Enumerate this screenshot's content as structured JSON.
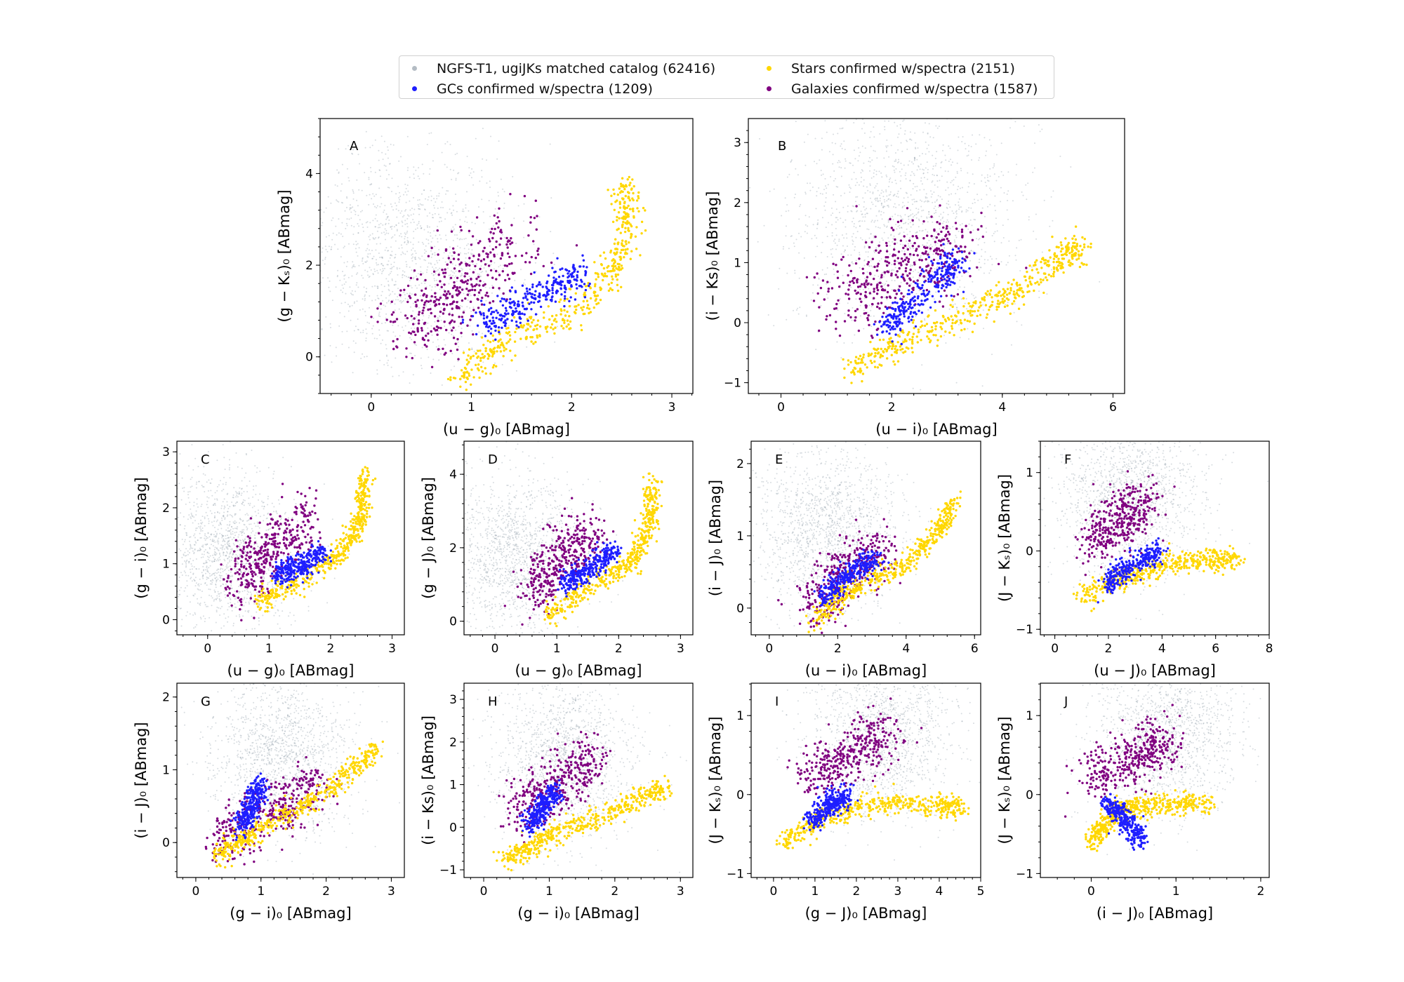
{
  "legend": {
    "placement": "top-center",
    "items": [
      {
        "label": "NGFS-T1, ugiJKs matched catalog (62416)",
        "color": "#8c9aa6"
      },
      {
        "label": "Stars confirmed w/spectra (2151)",
        "color": "#ffd700"
      },
      {
        "label": "GCs confirmed w/spectra (1209)",
        "color": "#1e1eff"
      },
      {
        "label": "Galaxies confirmed w/spectra (1587)",
        "color": "#800080"
      }
    ]
  },
  "chart_data": [
    {
      "type": "scatter",
      "panel": "A",
      "xlabel": "(u − g)₀ [ABmag]",
      "ylabel": "(g − Kₛ)₀ [ABmag]",
      "xlim": [
        -0.51,
        3.21
      ],
      "ylim": [
        -0.8,
        5.2
      ],
      "xticks": [
        0,
        1,
        2,
        3
      ],
      "yticks": [
        0,
        2,
        4
      ],
      "series": {
        "field": {
          "center": [
            0.3,
            2.2
          ]
        },
        "stars": [
          [
            0.85,
            -0.5
          ],
          [
            1.3,
            0.3
          ],
          [
            2.0,
            1.0
          ],
          [
            2.4,
            1.8
          ],
          [
            2.55,
            2.8
          ],
          [
            2.55,
            3.8
          ]
        ],
        "gcs": [
          [
            1.1,
            0.7
          ],
          [
            1.4,
            1.0
          ],
          [
            1.8,
            1.5
          ],
          [
            2.1,
            1.8
          ]
        ],
        "galaxies": [
          [
            0.4,
            0.3
          ],
          [
            0.7,
            1.2
          ],
          [
            1.0,
            1.8
          ],
          [
            1.5,
            2.8
          ]
        ]
      }
    },
    {
      "type": "scatter",
      "panel": "B",
      "xlabel": "(u − i)₀ [ABmag]",
      "ylabel": "(i − Ks)₀ [ABmag]",
      "xlim": [
        -0.59,
        6.21
      ],
      "ylim": [
        -1.18,
        3.4
      ],
      "xticks": [
        0,
        2,
        4,
        6
      ],
      "yticks": [
        -1,
        0,
        1,
        2,
        3
      ],
      "series": {
        "field": {
          "center": [
            2.2,
            1.8
          ]
        },
        "stars": [
          [
            1.2,
            -0.8
          ],
          [
            2.5,
            -0.2
          ],
          [
            4,
            0.4
          ],
          [
            5,
            1.0
          ],
          [
            5.4,
            1.3
          ]
        ],
        "gcs": [
          [
            1.9,
            -0.1
          ],
          [
            2.3,
            0.3
          ],
          [
            2.9,
            0.8
          ],
          [
            3.2,
            1.0
          ]
        ],
        "galaxies": [
          [
            1.2,
            0.2
          ],
          [
            1.7,
            0.8
          ],
          [
            2.5,
            1.0
          ],
          [
            3.2,
            1.3
          ]
        ]
      }
    },
    {
      "type": "scatter",
      "panel": "C",
      "xlabel": "(u − g)₀ [ABmag]",
      "ylabel": "(g − i)₀ [ABmag]",
      "xlim": [
        -0.5,
        3.2
      ],
      "ylim": [
        -0.27,
        3.19
      ],
      "xticks": [
        0,
        1,
        2,
        3
      ],
      "yticks": [
        0,
        1,
        2,
        3
      ],
      "series": {
        "field": {
          "center": [
            0.3,
            1.2
          ]
        },
        "stars": [
          [
            0.85,
            0.3
          ],
          [
            1.5,
            0.7
          ],
          [
            2.2,
            1.2
          ],
          [
            2.5,
            1.8
          ],
          [
            2.55,
            2.6
          ]
        ],
        "gcs": [
          [
            1.1,
            0.8
          ],
          [
            1.5,
            0.95
          ],
          [
            1.9,
            1.2
          ]
        ],
        "galaxies": [
          [
            0.6,
            0.6
          ],
          [
            0.8,
            1.1
          ],
          [
            1.2,
            1.4
          ],
          [
            1.6,
            1.8
          ]
        ]
      }
    },
    {
      "type": "scatter",
      "panel": "D",
      "xlabel": "(u − g)₀ [ABmag]",
      "ylabel": "(g − J)₀ [ABmag]",
      "xlim": [
        -0.5,
        3.2
      ],
      "ylim": [
        -0.37,
        4.9
      ],
      "xticks": [
        0,
        1,
        2,
        3
      ],
      "yticks": [
        0,
        2,
        4
      ],
      "series": {
        "field": {
          "center": [
            0.3,
            1.8
          ]
        },
        "stars": [
          [
            0.85,
            0.1
          ],
          [
            1.5,
            0.9
          ],
          [
            2.2,
            1.6
          ],
          [
            2.5,
            2.6
          ],
          [
            2.55,
            3.8
          ]
        ],
        "gcs": [
          [
            1.1,
            1.0
          ],
          [
            1.5,
            1.4
          ],
          [
            1.9,
            1.9
          ]
        ],
        "galaxies": [
          [
            0.6,
            0.6
          ],
          [
            0.9,
            1.5
          ],
          [
            1.3,
            2.0
          ],
          [
            1.6,
            2.4
          ]
        ]
      }
    },
    {
      "type": "scatter",
      "panel": "E",
      "xlabel": "(u − i)₀ [ABmag]",
      "ylabel": "(i − J)₀ [ABmag]",
      "xlim": [
        -0.53,
        6.18
      ],
      "ylim": [
        -0.37,
        2.31
      ],
      "xticks": [
        0,
        2,
        4,
        6
      ],
      "yticks": [
        0,
        1,
        2
      ],
      "series": {
        "field": {
          "center": [
            1.7,
            1.1
          ]
        },
        "stars": [
          [
            1.3,
            -0.2
          ],
          [
            2.5,
            0.3
          ],
          [
            4,
            0.6
          ],
          [
            5,
            1.1
          ],
          [
            5.4,
            1.5
          ]
        ],
        "gcs": [
          [
            1.5,
            0.1
          ],
          [
            2,
            0.35
          ],
          [
            2.6,
            0.55
          ],
          [
            3.2,
            0.7
          ]
        ],
        "galaxies": [
          [
            1.2,
            0.0
          ],
          [
            1.8,
            0.3
          ],
          [
            2.6,
            0.6
          ],
          [
            3.3,
            0.8
          ]
        ]
      }
    },
    {
      "type": "scatter",
      "panel": "F",
      "xlabel": "(u − J)₀ [ABmag]",
      "ylabel": "(J − Kₛ)₀ [ABmag]",
      "xlim": [
        -0.54,
        8.0
      ],
      "ylim": [
        -1.07,
        1.4
      ],
      "xticks": [
        0,
        2,
        4,
        6,
        8
      ],
      "yticks": [
        -1,
        0,
        1
      ],
      "series": {
        "field": {
          "center": [
            2.8,
            0.7
          ]
        },
        "stars": [
          [
            1,
            -0.6
          ],
          [
            2.5,
            -0.35
          ],
          [
            4,
            -0.18
          ],
          [
            5.5,
            -0.12
          ],
          [
            6.8,
            -0.1
          ]
        ],
        "gcs": [
          [
            2,
            -0.45
          ],
          [
            2.5,
            -0.25
          ],
          [
            3.3,
            -0.1
          ],
          [
            4,
            0
          ]
        ],
        "galaxies": [
          [
            1.5,
            0.1
          ],
          [
            2,
            0.35
          ],
          [
            2.8,
            0.5
          ],
          [
            3.5,
            0.6
          ]
        ]
      }
    },
    {
      "type": "scatter",
      "panel": "G",
      "xlabel": "(g − i)₀ [ABmag]",
      "ylabel": "(i − J)₀ [ABmag]",
      "xlim": [
        -0.29,
        3.2
      ],
      "ylim": [
        -0.48,
        2.19
      ],
      "xticks": [
        0,
        1,
        2,
        3
      ],
      "yticks": [
        0,
        1,
        2
      ],
      "series": {
        "field": {
          "center": [
            1.3,
            1.2
          ]
        },
        "stars": [
          [
            0.3,
            -0.2
          ],
          [
            1.0,
            0.2
          ],
          [
            2.0,
            0.7
          ],
          [
            2.8,
            1.3
          ]
        ],
        "gcs": [
          [
            0.7,
            0.2
          ],
          [
            0.85,
            0.5
          ],
          [
            1.0,
            0.8
          ]
        ],
        "galaxies": [
          [
            0.3,
            0.0
          ],
          [
            0.9,
            0.3
          ],
          [
            1.5,
            0.6
          ],
          [
            1.9,
            0.8
          ]
        ]
      }
    },
    {
      "type": "scatter",
      "panel": "H",
      "xlabel": "(g − i)₀ [ABmag]",
      "ylabel": "(i − Ks)₀ [ABmag]",
      "xlim": [
        -0.3,
        3.19
      ],
      "ylim": [
        -1.18,
        3.38
      ],
      "xticks": [
        0,
        1,
        2,
        3
      ],
      "yticks": [
        -1,
        0,
        1,
        2,
        3
      ],
      "series": {
        "field": {
          "center": [
            1.2,
            1.6
          ]
        },
        "stars": [
          [
            0.3,
            -0.8
          ],
          [
            1.0,
            -0.2
          ],
          [
            2.0,
            0.4
          ],
          [
            2.8,
            1.0
          ]
        ],
        "gcs": [
          [
            0.7,
            0.0
          ],
          [
            0.9,
            0.5
          ],
          [
            1.1,
            0.9
          ]
        ],
        "galaxies": [
          [
            0.5,
            0.3
          ],
          [
            0.9,
            0.8
          ],
          [
            1.3,
            1.2
          ],
          [
            1.6,
            1.6
          ]
        ]
      }
    },
    {
      "type": "scatter",
      "panel": "I",
      "xlabel": "(g − J)₀ [ABmag]",
      "ylabel": "(J − Kₛ)₀ [ABmag]",
      "xlim": [
        -0.54,
        5.0
      ],
      "ylim": [
        -1.05,
        1.41
      ],
      "xticks": [
        0,
        1,
        2,
        3,
        4,
        5
      ],
      "yticks": [
        -1,
        0,
        1
      ],
      "series": {
        "field": {
          "center": [
            2.6,
            0.75
          ]
        },
        "stars": [
          [
            0.2,
            -0.6
          ],
          [
            1.2,
            -0.3
          ],
          [
            2.5,
            -0.1
          ],
          [
            4,
            -0.15
          ],
          [
            4.6,
            -0.15
          ]
        ],
        "gcs": [
          [
            0.9,
            -0.35
          ],
          [
            1.3,
            -0.15
          ],
          [
            1.8,
            0.0
          ]
        ],
        "galaxies": [
          [
            0.8,
            0.2
          ],
          [
            1.5,
            0.4
          ],
          [
            2.2,
            0.6
          ],
          [
            2.8,
            0.8
          ]
        ]
      }
    },
    {
      "type": "scatter",
      "panel": "J",
      "xlabel": "(i − J)₀ [ABmag]",
      "ylabel": "(J − Kₛ)₀ [ABmag]",
      "xlim": [
        -0.6,
        2.1
      ],
      "ylim": [
        -1.05,
        1.41
      ],
      "xticks": [
        0,
        1,
        2
      ],
      "yticks": [
        -1,
        0,
        1
      ],
      "series": {
        "field": {
          "center": [
            0.9,
            0.75
          ]
        },
        "stars": [
          [
            0.0,
            -0.6
          ],
          [
            0.3,
            -0.2
          ],
          [
            0.8,
            -0.12
          ],
          [
            1.4,
            -0.12
          ]
        ],
        "gcs": [
          [
            0.2,
            -0.1
          ],
          [
            0.4,
            -0.3
          ],
          [
            0.6,
            -0.6
          ]
        ],
        "galaxies": [
          [
            0.0,
            0.2
          ],
          [
            0.4,
            0.4
          ],
          [
            0.7,
            0.6
          ],
          [
            0.9,
            0.7
          ]
        ]
      }
    }
  ]
}
